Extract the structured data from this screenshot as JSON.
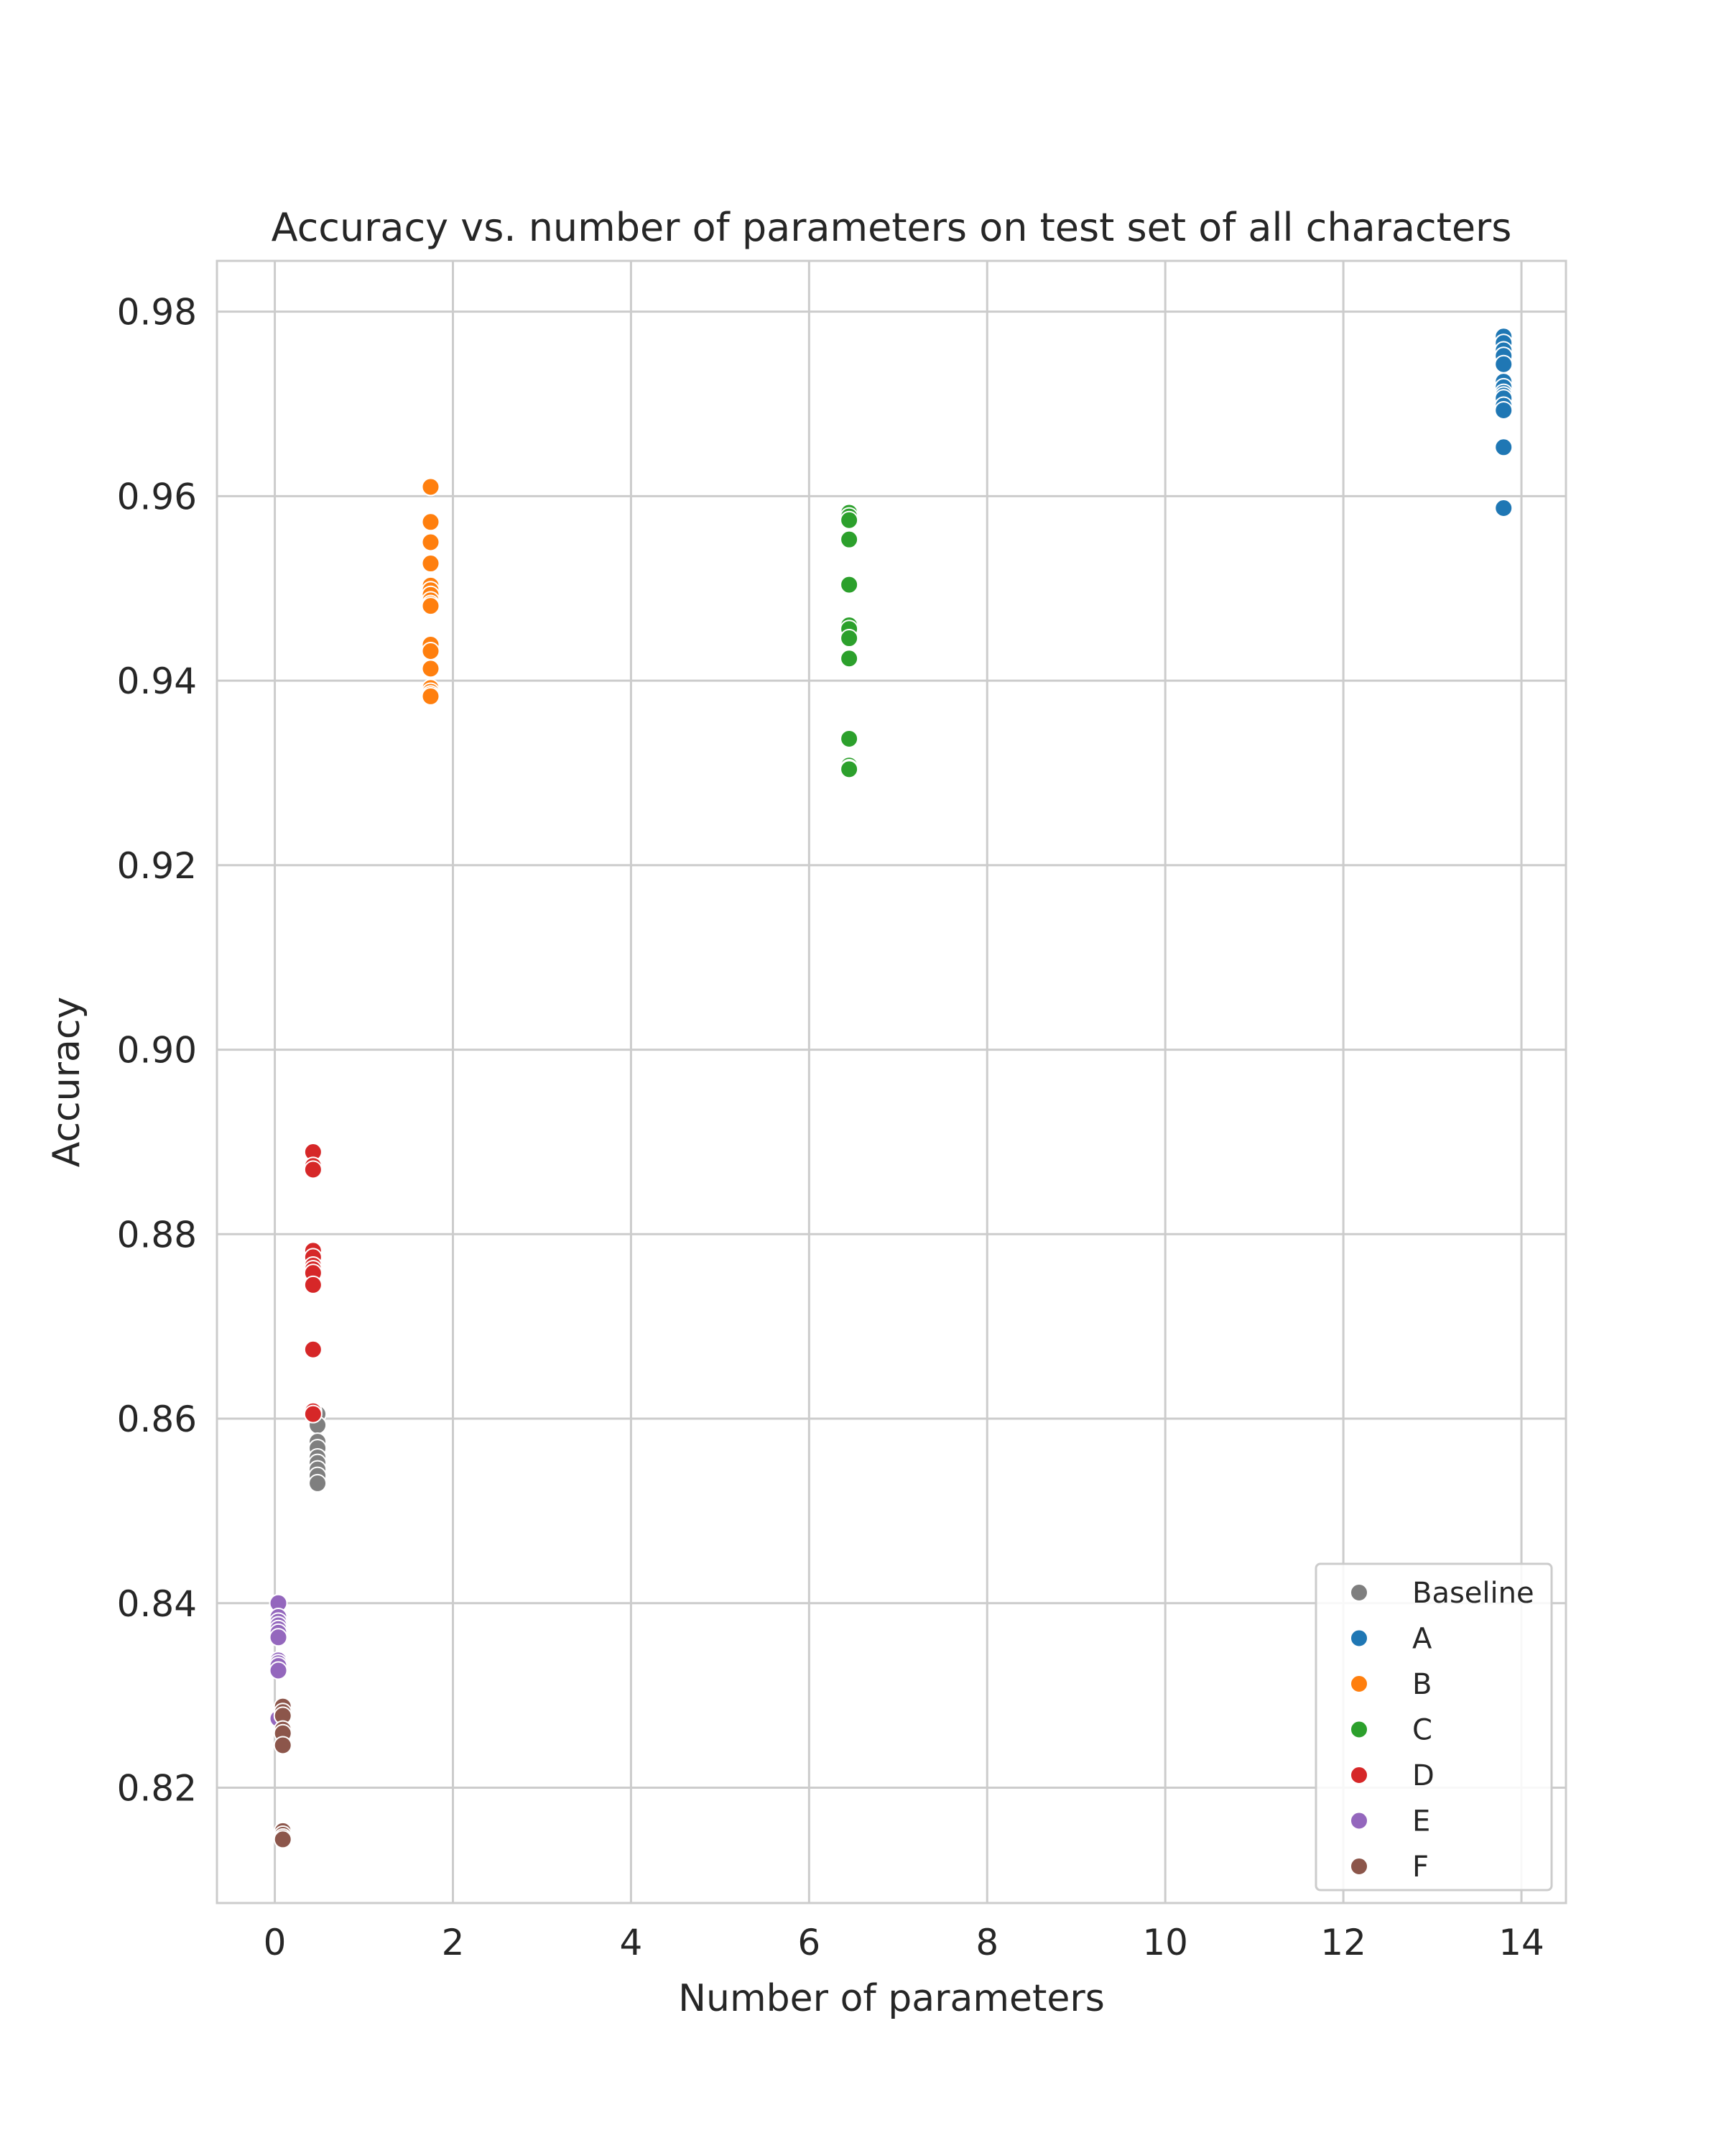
{
  "chart_data": {
    "type": "scatter",
    "title": "Accuracy vs. number of parameters on test set of all characters",
    "xlabel": "Number of parameters",
    "ylabel": "Accuracy",
    "xlim": [
      -0.65,
      14.5
    ],
    "ylim": [
      0.8075,
      0.9855
    ],
    "xticks": [
      0,
      2,
      4,
      6,
      8,
      10,
      12,
      14
    ],
    "xtick_labels": [
      "0",
      "2",
      "4",
      "6",
      "8",
      "10",
      "12",
      "14"
    ],
    "yticks": [
      0.82,
      0.84,
      0.86,
      0.88,
      0.9,
      0.92,
      0.94,
      0.96,
      0.98
    ],
    "ytick_labels": [
      "0.82",
      "0.84",
      "0.86",
      "0.88",
      "0.90",
      "0.92",
      "0.94",
      "0.96",
      "0.98"
    ],
    "grid": true,
    "legend_position": "bottom-right",
    "series": [
      {
        "name": "Baseline",
        "color": "#7f7f7f",
        "x": [
          0.48,
          0.48,
          0.48,
          0.48,
          0.48,
          0.48,
          0.48,
          0.48,
          0.48
        ],
        "y": [
          0.8605,
          0.8593,
          0.8575,
          0.8568,
          0.8558,
          0.8552,
          0.8545,
          0.8538,
          0.853
        ]
      },
      {
        "name": "A",
        "color": "#1f77b4",
        "x": [
          13.8,
          13.8,
          13.8,
          13.8,
          13.8,
          13.8,
          13.8,
          13.8,
          13.8,
          13.8,
          13.8,
          13.8,
          13.8,
          13.8
        ],
        "y": [
          0.9773,
          0.9766,
          0.9758,
          0.9752,
          0.9743,
          0.9724,
          0.9718,
          0.9712,
          0.9709,
          0.9706,
          0.9698,
          0.9693,
          0.9653,
          0.9587
        ]
      },
      {
        "name": "B",
        "color": "#ff7f0e",
        "x": [
          1.75,
          1.75,
          1.75,
          1.75,
          1.75,
          1.75,
          1.75,
          1.75,
          1.75,
          1.75,
          1.75,
          1.75,
          1.75,
          1.75,
          1.75,
          1.75,
          1.75
        ],
        "y": [
          0.961,
          0.9572,
          0.955,
          0.9527,
          0.9503,
          0.9498,
          0.9493,
          0.9487,
          0.9483,
          0.9481,
          0.9439,
          0.9432,
          0.9413,
          0.9392,
          0.9388,
          0.9385,
          0.9383
        ]
      },
      {
        "name": "C",
        "color": "#2ca02c",
        "x": [
          6.45,
          6.45,
          6.45,
          6.45,
          6.45,
          6.45,
          6.45,
          6.45,
          6.45,
          6.45,
          6.45,
          6.45,
          6.45
        ],
        "y": [
          0.9582,
          0.9578,
          0.9574,
          0.9553,
          0.9504,
          0.946,
          0.9456,
          0.9446,
          0.9424,
          0.9337,
          0.9308,
          0.9305,
          0.9304
        ]
      },
      {
        "name": "D",
        "color": "#d62728",
        "x": [
          0.43,
          0.43,
          0.43,
          0.43,
          0.43,
          0.43,
          0.43,
          0.43,
          0.43,
          0.43,
          0.43,
          0.43
        ],
        "y": [
          0.8889,
          0.8874,
          0.887,
          0.8782,
          0.8775,
          0.8766,
          0.8762,
          0.8758,
          0.8745,
          0.8675,
          0.8608,
          0.8605
        ]
      },
      {
        "name": "E",
        "color": "#9467bd",
        "x": [
          0.04,
          0.04,
          0.04,
          0.04,
          0.04,
          0.04,
          0.04,
          0.04,
          0.04,
          0.04,
          0.04,
          0.04
        ],
        "y": [
          0.84,
          0.8385,
          0.838,
          0.8376,
          0.8372,
          0.8368,
          0.8363,
          0.8338,
          0.8335,
          0.8332,
          0.8327,
          0.8275
        ]
      },
      {
        "name": "F",
        "color": "#8c564b",
        "x": [
          0.09,
          0.09,
          0.09,
          0.09,
          0.09,
          0.09,
          0.09,
          0.09,
          0.09,
          0.09
        ],
        "y": [
          0.8288,
          0.8282,
          0.8278,
          0.8263,
          0.8259,
          0.8246,
          0.8153,
          0.8149,
          0.8146,
          0.8144
        ]
      }
    ]
  }
}
